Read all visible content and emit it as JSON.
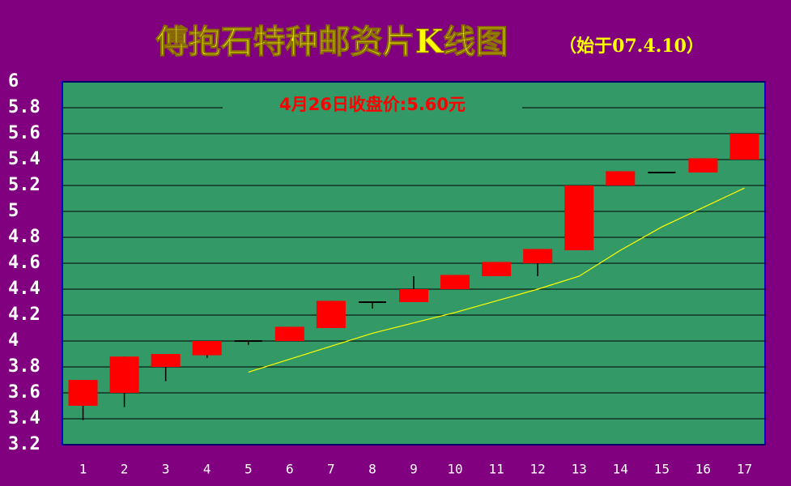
{
  "chart_data": {
    "type": "candlestick",
    "title": "傅抱石特种邮资片K线图",
    "subtitle": "（始于07.4.10）",
    "annotation": "4月26日收盘价:5.60元",
    "categories": [
      "1",
      "2",
      "3",
      "4",
      "5",
      "6",
      "7",
      "8",
      "9",
      "10",
      "11",
      "12",
      "13",
      "14",
      "15",
      "16",
      "17"
    ],
    "open": [
      3.5,
      3.6,
      3.8,
      3.89,
      4.0,
      4.0,
      4.1,
      4.3,
      4.3,
      4.4,
      4.5,
      4.6,
      4.7,
      5.2,
      5.3,
      5.3,
      5.4
    ],
    "high": [
      3.7,
      3.88,
      3.9,
      4.0,
      4.0,
      4.11,
      4.31,
      4.3,
      4.5,
      4.51,
      4.61,
      4.71,
      5.2,
      5.31,
      5.3,
      5.41,
      5.6
    ],
    "low": [
      3.39,
      3.49,
      3.69,
      3.87,
      3.97,
      4.0,
      4.1,
      4.25,
      4.3,
      4.4,
      4.5,
      4.5,
      4.7,
      5.2,
      5.3,
      5.3,
      5.4
    ],
    "close": [
      3.7,
      3.88,
      3.9,
      4.0,
      4.0,
      4.11,
      4.31,
      4.3,
      4.4,
      4.51,
      4.61,
      4.71,
      5.2,
      5.31,
      5.3,
      5.41,
      5.6
    ],
    "ma": [
      null,
      null,
      null,
      null,
      3.76,
      3.86,
      3.96,
      4.06,
      4.14,
      4.22,
      4.31,
      4.4,
      4.5,
      4.7,
      4.88,
      5.03,
      5.18
    ],
    "up_color": "#ff0000",
    "ma_color": "#ffff00",
    "ylim": [
      3.2,
      6
    ],
    "yticks": [
      3.2,
      3.4,
      3.6,
      3.8,
      4,
      4.2,
      4.4,
      4.6,
      4.8,
      5,
      5.2,
      5.4,
      5.6,
      5.8,
      6
    ],
    "grid": true
  }
}
